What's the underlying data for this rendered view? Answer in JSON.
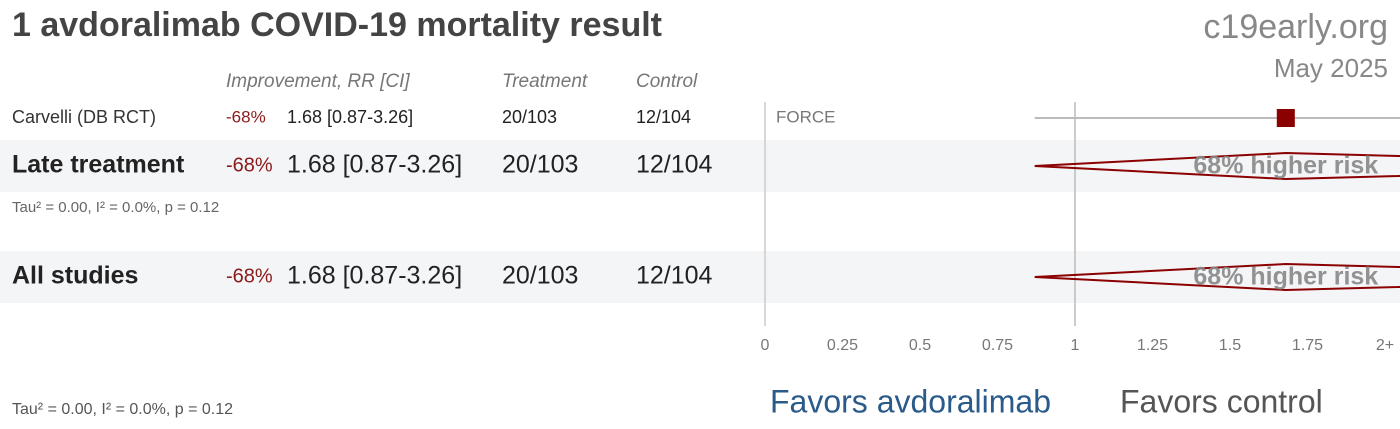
{
  "chart_data": {
    "type": "forest",
    "title": "1 avdoralimab COVID-19 mortality result",
    "brand": "c19early.org",
    "date": "May 2025",
    "columns": [
      "Improvement, RR [CI]",
      "Treatment",
      "Control"
    ],
    "xlim": [
      0,
      2
    ],
    "xticks": [
      0,
      0.25,
      0.5,
      0.75,
      1,
      1.25,
      1.5,
      1.75,
      {
        "value": 2,
        "label": "2+"
      }
    ],
    "favors": [
      "Favors avdoralimab",
      "Favors control"
    ],
    "footnote": "Tau² = 0.00, I² = 0.0%, p = 0.12",
    "rows": [
      {
        "kind": "study",
        "name": "Carvelli (DB RCT)",
        "improvement": "-68%",
        "rr": 1.68,
        "ci": [
          0.87,
          3.26
        ],
        "rr_label": "1.68 [0.87-3.26]",
        "treatment": "20/103",
        "control": "12/104",
        "trial": "FORCE"
      },
      {
        "kind": "summary",
        "name": "Late treatment",
        "improvement": "-68%",
        "rr": 1.68,
        "ci": [
          0.87,
          3.26
        ],
        "rr_label": "1.68 [0.87-3.26]",
        "treatment": "20/103",
        "control": "12/104",
        "effect_label": "68% higher risk",
        "stats": "Tau² = 0.00, I² = 0.0%, p = 0.12"
      },
      {
        "kind": "summary",
        "name": "All studies",
        "improvement": "-68%",
        "rr": 1.68,
        "ci": [
          0.87,
          3.26
        ],
        "rr_label": "1.68 [0.87-3.26]",
        "treatment": "20/103",
        "control": "12/104",
        "effect_label": "68% higher risk"
      }
    ]
  }
}
